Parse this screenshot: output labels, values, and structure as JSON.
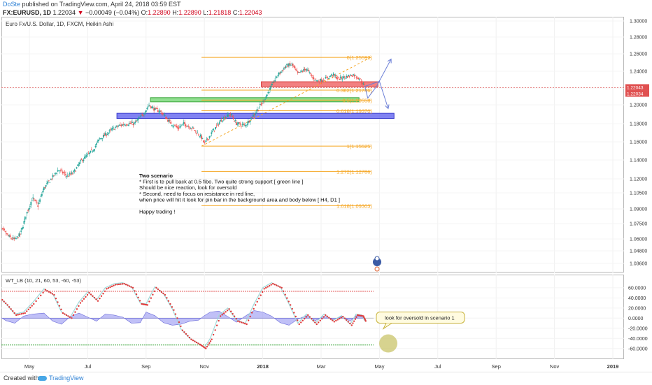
{
  "header": {
    "author": "DoSte",
    "published": "published on TradingView.com, April 24, 2018 03:59 EST",
    "symbol": "FX:EURUSD, 1D",
    "last": "1.22034",
    "change": "−0.00049 (−0.04%)",
    "o_label": "O:",
    "o_value": "1.22890",
    "h_label": "H:",
    "h_value": "1.22890",
    "l_label": "L:",
    "l_value": "1.21818",
    "c_label": "C:",
    "c_value": "1.22043"
  },
  "footer": {
    "created_with": "Created with",
    "brand": "TradingView"
  },
  "colors": {
    "bull": "#26a69a",
    "bear": "#ef5350",
    "fib": "#f5a623",
    "green_zone": "#7ed97e",
    "blue_zone": "#6a6cf0",
    "red_zone": "#f06a6a",
    "arrow": "#6b7fd7"
  },
  "chart_data": [
    {
      "type": "candlestick",
      "title": "Euro Fx/U.S. Dollar, 1D, FXCM, Heikin Ashi",
      "x_tick_labels": [
        "May",
        "Jul",
        "Sep",
        "Nov",
        "2018",
        "Mar",
        "May",
        "Jul",
        "Sep",
        "Nov",
        "2019"
      ],
      "y_tick_labels": [
        "1.30000",
        "1.28000",
        "1.26000",
        "1.24000",
        "1.22000",
        "1.20000",
        "1.18000",
        "1.16000",
        "1.14000",
        "1.12000",
        "1.10500",
        "1.09000",
        "1.07500",
        "1.06000",
        "1.04800",
        "1.03600"
      ],
      "price_labels": [
        "1.22043",
        "1.22034"
      ],
      "price_path": [
        {
          "month": 3.9,
          "price": 1.071
        },
        {
          "month": 4.1,
          "price": 1.068
        },
        {
          "month": 4.3,
          "price": 1.062
        },
        {
          "month": 4.5,
          "price": 1.059
        },
        {
          "month": 4.7,
          "price": 1.065
        },
        {
          "month": 4.9,
          "price": 1.085
        },
        {
          "month": 5.1,
          "price": 1.1
        },
        {
          "month": 5.3,
          "price": 1.093
        },
        {
          "month": 5.5,
          "price": 1.11
        },
        {
          "month": 5.8,
          "price": 1.122
        },
        {
          "month": 6.0,
          "price": 1.13
        },
        {
          "month": 6.3,
          "price": 1.123
        },
        {
          "month": 6.5,
          "price": 1.126
        },
        {
          "month": 6.8,
          "price": 1.14
        },
        {
          "month": 7.0,
          "price": 1.145
        },
        {
          "month": 7.2,
          "price": 1.152
        },
        {
          "month": 7.4,
          "price": 1.163
        },
        {
          "month": 7.7,
          "price": 1.17
        },
        {
          "month": 7.9,
          "price": 1.175
        },
        {
          "month": 8.1,
          "price": 1.178
        },
        {
          "month": 8.3,
          "price": 1.18
        },
        {
          "month": 8.6,
          "price": 1.18
        },
        {
          "month": 8.9,
          "price": 1.19
        },
        {
          "month": 9.1,
          "price": 1.2
        },
        {
          "month": 9.3,
          "price": 1.195
        },
        {
          "month": 9.5,
          "price": 1.193
        },
        {
          "month": 9.8,
          "price": 1.182
        },
        {
          "month": 10.1,
          "price": 1.175
        },
        {
          "month": 10.3,
          "price": 1.18
        },
        {
          "month": 10.6,
          "price": 1.175
        },
        {
          "month": 10.9,
          "price": 1.165
        },
        {
          "month": 11.0,
          "price": 1.158
        },
        {
          "month": 11.3,
          "price": 1.172
        },
        {
          "month": 11.6,
          "price": 1.185
        },
        {
          "month": 11.9,
          "price": 1.19
        },
        {
          "month": 12.1,
          "price": 1.18
        },
        {
          "month": 12.4,
          "price": 1.178
        },
        {
          "month": 12.7,
          "price": 1.19
        },
        {
          "month": 13.0,
          "price": 1.203
        },
        {
          "month": 13.3,
          "price": 1.222
        },
        {
          "month": 13.5,
          "price": 1.235
        },
        {
          "month": 13.8,
          "price": 1.246
        },
        {
          "month": 14.0,
          "price": 1.248
        },
        {
          "month": 14.2,
          "price": 1.237
        },
        {
          "month": 14.5,
          "price": 1.243
        },
        {
          "month": 14.7,
          "price": 1.233
        },
        {
          "month": 14.9,
          "price": 1.228
        },
        {
          "month": 15.2,
          "price": 1.232
        },
        {
          "month": 15.4,
          "price": 1.236
        },
        {
          "month": 15.6,
          "price": 1.231
        },
        {
          "month": 15.9,
          "price": 1.234
        },
        {
          "month": 16.1,
          "price": 1.236
        },
        {
          "month": 16.3,
          "price": 1.232
        },
        {
          "month": 16.5,
          "price": 1.221
        }
      ],
      "zones": [
        {
          "name": "red",
          "from_month": 12.95,
          "to_month": 16.95,
          "low": 1.2215,
          "high": 1.2275
        },
        {
          "name": "green",
          "from_month": 9.15,
          "to_month": 16.3,
          "low": 1.2035,
          "high": 1.2085
        },
        {
          "name": "blue",
          "from_month": 8.0,
          "to_month": 17.5,
          "low": 1.1855,
          "high": 1.191
        }
      ],
      "fibonacci": {
        "from_month": 10.9,
        "to_month": 16.7,
        "levels": [
          {
            "label": "0(1.25592)",
            "price": 1.25592
          },
          {
            "label": "0.382(1.21746)",
            "price": 1.21746
          },
          {
            "label": "0.5(1.20558)",
            "price": 1.20558
          },
          {
            "label": "0.618(1.19370)",
            "price": 1.1937
          },
          {
            "label": "1(1.15525)",
            "price": 1.15525
          },
          {
            "label": "1.272(1.12786)",
            "price": 1.12786
          },
          {
            "label": "1.618(1.09303)",
            "price": 1.09303
          }
        ]
      },
      "annotation": [
        "Two scenario",
        "* First is te pull back at 0.5 fibo. Two quite strong support [ green line ]",
        "Should be nice reaction, look for oversold",
        "* Second, need to focus on resistance in red line,",
        "when price will hit it look for pin bar in the background area and body below [ H4, D1 ]",
        "",
        "Happy trading !"
      ]
    },
    {
      "type": "line",
      "title": "WT_LB (10, 21, 60, 53, -60, -53)",
      "y_tick_labels": [
        "60.0000",
        "40.0000",
        "20.0000",
        "0.0000",
        "-20.0000",
        "-40.0000",
        "-60.0000"
      ],
      "ylim": [
        -70,
        75
      ],
      "overbought": 53,
      "oversold": -53,
      "wt1": [
        {
          "month": 3.9,
          "value": 45
        },
        {
          "month": 4.2,
          "value": 28
        },
        {
          "month": 4.5,
          "value": 8
        },
        {
          "month": 4.8,
          "value": 12
        },
        {
          "month": 5.1,
          "value": 30
        },
        {
          "month": 5.5,
          "value": 58
        },
        {
          "month": 5.8,
          "value": 48
        },
        {
          "month": 6.1,
          "value": 12
        },
        {
          "month": 6.4,
          "value": 2
        },
        {
          "month": 6.7,
          "value": 32
        },
        {
          "month": 7.0,
          "value": 52
        },
        {
          "month": 7.3,
          "value": 36
        },
        {
          "month": 7.6,
          "value": 60
        },
        {
          "month": 7.9,
          "value": 68
        },
        {
          "month": 8.2,
          "value": 70
        },
        {
          "month": 8.5,
          "value": 62
        },
        {
          "month": 8.8,
          "value": 30
        },
        {
          "month": 9.0,
          "value": 28
        },
        {
          "month": 9.3,
          "value": 62
        },
        {
          "month": 9.6,
          "value": 48
        },
        {
          "month": 9.9,
          "value": 18
        },
        {
          "month": 10.2,
          "value": -22
        },
        {
          "month": 10.5,
          "value": -40
        },
        {
          "month": 10.8,
          "value": -50
        },
        {
          "month": 11.0,
          "value": -58
        },
        {
          "month": 11.2,
          "value": -40
        },
        {
          "month": 11.5,
          "value": 6
        },
        {
          "month": 11.8,
          "value": 20
        },
        {
          "month": 12.1,
          "value": -4
        },
        {
          "month": 12.4,
          "value": -10
        },
        {
          "month": 12.7,
          "value": 28
        },
        {
          "month": 13.0,
          "value": 60
        },
        {
          "month": 13.3,
          "value": 70
        },
        {
          "month": 13.6,
          "value": 62
        },
        {
          "month": 13.9,
          "value": 28
        },
        {
          "month": 14.2,
          "value": -10
        },
        {
          "month": 14.5,
          "value": 8
        },
        {
          "month": 14.8,
          "value": -10
        },
        {
          "month": 15.1,
          "value": 8
        },
        {
          "month": 15.4,
          "value": -5
        },
        {
          "month": 15.7,
          "value": 5
        },
        {
          "month": 16.0,
          "value": -12
        },
        {
          "month": 16.2,
          "value": 8
        },
        {
          "month": 16.4,
          "value": 6
        },
        {
          "month": 16.5,
          "value": -6
        }
      ],
      "hist": [
        {
          "month": 3.9,
          "value": 6
        },
        {
          "month": 4.2,
          "value": -5
        },
        {
          "month": 4.5,
          "value": -10
        },
        {
          "month": 4.8,
          "value": 4
        },
        {
          "month": 5.1,
          "value": 8
        },
        {
          "month": 5.5,
          "value": 10
        },
        {
          "month": 5.8,
          "value": -6
        },
        {
          "month": 6.1,
          "value": -12
        },
        {
          "month": 6.4,
          "value": 3
        },
        {
          "month": 6.7,
          "value": 10
        },
        {
          "month": 7.0,
          "value": 2
        },
        {
          "month": 7.3,
          "value": -6
        },
        {
          "month": 7.6,
          "value": 8
        },
        {
          "month": 7.9,
          "value": 6
        },
        {
          "month": 8.2,
          "value": 2
        },
        {
          "month": 8.5,
          "value": -10
        },
        {
          "month": 8.8,
          "value": -9
        },
        {
          "month": 9.0,
          "value": 12
        },
        {
          "month": 9.3,
          "value": 5
        },
        {
          "month": 9.6,
          "value": -9
        },
        {
          "month": 9.9,
          "value": -14
        },
        {
          "month": 10.2,
          "value": -12
        },
        {
          "month": 10.5,
          "value": -6
        },
        {
          "month": 10.8,
          "value": -4
        },
        {
          "month": 11.0,
          "value": 5
        },
        {
          "month": 11.2,
          "value": 12
        },
        {
          "month": 11.5,
          "value": 14
        },
        {
          "month": 11.8,
          "value": 3
        },
        {
          "month": 12.1,
          "value": -8
        },
        {
          "month": 12.4,
          "value": 4
        },
        {
          "month": 12.7,
          "value": 15
        },
        {
          "month": 13.0,
          "value": 12
        },
        {
          "month": 13.3,
          "value": 4
        },
        {
          "month": 13.6,
          "value": -9
        },
        {
          "month": 13.9,
          "value": -14
        },
        {
          "month": 14.2,
          "value": -2
        },
        {
          "month": 14.5,
          "value": 5
        },
        {
          "month": 14.8,
          "value": -5
        },
        {
          "month": 15.1,
          "value": 4
        },
        {
          "month": 15.4,
          "value": -4
        },
        {
          "month": 15.7,
          "value": 3
        },
        {
          "month": 16.0,
          "value": -6
        },
        {
          "month": 16.2,
          "value": 5
        },
        {
          "month": 16.4,
          "value": 2
        },
        {
          "month": 16.5,
          "value": -4
        }
      ],
      "callout": "look for oversold in scenario 1"
    }
  ]
}
